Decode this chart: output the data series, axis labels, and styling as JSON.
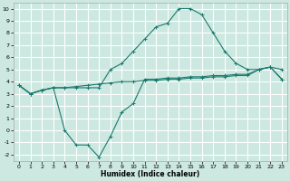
{
  "xlabel": "Humidex (Indice chaleur)",
  "bg_color": "#cce8e0",
  "grid_color": "#ffffff",
  "line_color": "#1a7a6e",
  "xlim": [
    -0.5,
    23.5
  ],
  "ylim": [
    -2.5,
    10.5
  ],
  "xticks": [
    0,
    1,
    2,
    3,
    4,
    5,
    6,
    7,
    8,
    9,
    10,
    11,
    12,
    13,
    14,
    15,
    16,
    17,
    18,
    19,
    20,
    21,
    22,
    23
  ],
  "yticks": [
    -2,
    -1,
    0,
    1,
    2,
    3,
    4,
    5,
    6,
    7,
    8,
    9,
    10
  ],
  "line1_x": [
    0,
    1,
    2,
    3,
    4,
    5,
    6,
    7,
    8,
    9,
    10,
    11,
    12,
    13,
    14,
    15,
    16,
    17,
    18,
    19,
    20,
    21,
    22,
    23
  ],
  "line1_y": [
    3.7,
    3.0,
    3.3,
    3.5,
    3.5,
    3.5,
    3.5,
    3.5,
    5.0,
    5.5,
    6.5,
    7.5,
    8.5,
    8.8,
    10.0,
    10.0,
    9.5,
    8.0,
    6.5,
    5.5,
    5.0,
    5.0,
    5.2,
    5.0
  ],
  "line2_x": [
    0,
    1,
    2,
    3,
    4,
    5,
    6,
    7,
    8,
    9,
    10,
    11,
    12,
    13,
    14,
    15,
    16,
    17,
    18,
    19,
    20,
    21,
    22,
    23
  ],
  "line2_y": [
    3.7,
    3.0,
    3.3,
    3.5,
    3.5,
    3.6,
    3.7,
    3.8,
    3.9,
    4.0,
    4.0,
    4.1,
    4.1,
    4.2,
    4.2,
    4.3,
    4.3,
    4.4,
    4.4,
    4.5,
    4.5,
    5.0,
    5.2,
    4.2
  ],
  "line3_x": [
    0,
    1,
    2,
    3,
    4,
    5,
    6,
    7,
    8,
    9,
    10,
    11,
    12,
    13,
    14,
    15,
    16,
    17,
    18,
    19,
    20,
    21,
    22,
    23
  ],
  "line3_y": [
    3.7,
    3.0,
    3.3,
    3.5,
    0.0,
    -1.2,
    -1.2,
    -2.2,
    -0.5,
    1.5,
    2.2,
    4.2,
    4.2,
    4.3,
    4.3,
    4.4,
    4.4,
    4.5,
    4.5,
    4.6,
    4.6,
    5.0,
    5.2,
    4.2
  ]
}
